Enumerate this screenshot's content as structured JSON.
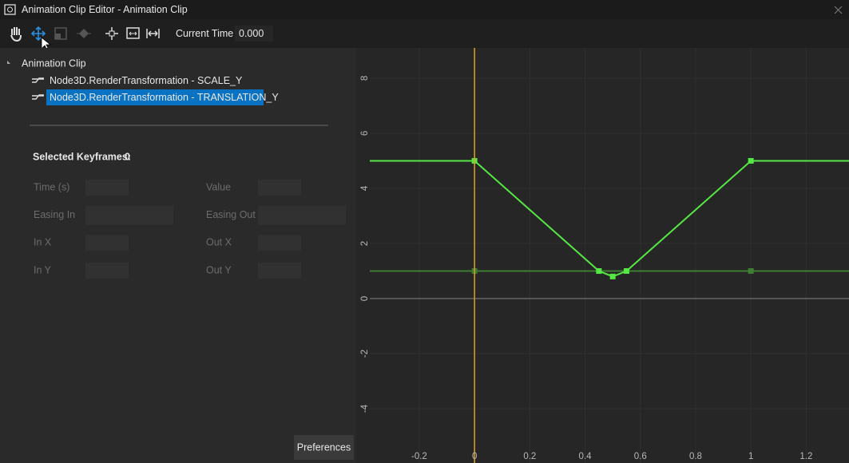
{
  "window": {
    "title": "Animation Clip Editor - Animation Clip"
  },
  "toolbar": {
    "current_time_label": "Current Time",
    "current_time": "0.000"
  },
  "tree": {
    "root": "Animation Clip",
    "tracks": [
      "Node3D.RenderTransformation - SCALE_Y",
      "Node3D.RenderTransformation - TRANSLATION_Y"
    ],
    "selected_track": 1
  },
  "keyframes": {
    "selected_label": "Selected Keyframes:",
    "selected_count": "0",
    "fields": [
      {
        "label": "Time (s)",
        "col": 0,
        "row": 0,
        "wide": false
      },
      {
        "label": "Value",
        "col": 1,
        "row": 0,
        "wide": false
      },
      {
        "label": "Easing In",
        "col": 0,
        "row": 1,
        "wide": true
      },
      {
        "label": "Easing Out",
        "col": 1,
        "row": 1,
        "wide": true
      },
      {
        "label": "In X",
        "col": 0,
        "row": 2,
        "wide": false
      },
      {
        "label": "Out X",
        "col": 1,
        "row": 2,
        "wide": false
      },
      {
        "label": "In Y",
        "col": 0,
        "row": 3,
        "wide": false
      },
      {
        "label": "Out Y",
        "col": 1,
        "row": 3,
        "wide": false
      }
    ]
  },
  "preferences_button": "Preferences",
  "chart_data": {
    "type": "line",
    "xlim": [
      -0.379,
      1.355
    ],
    "ylim": [
      -5.97,
      9.1
    ],
    "xticks": [
      -0.2,
      0,
      0.2,
      0.4,
      0.6,
      0.8,
      1,
      1.2
    ],
    "yticks": [
      -4,
      -2,
      0,
      2,
      4,
      6,
      8
    ],
    "grid": true,
    "series": [
      {
        "color": "#3f7d35",
        "x": [
          0,
          1
        ],
        "values": [
          1,
          1
        ]
      },
      {
        "color": "#55e844",
        "x": [
          0,
          0.45,
          0.5,
          0.55,
          1
        ],
        "values": [
          5,
          1,
          0.8,
          1,
          5
        ]
      }
    ]
  }
}
